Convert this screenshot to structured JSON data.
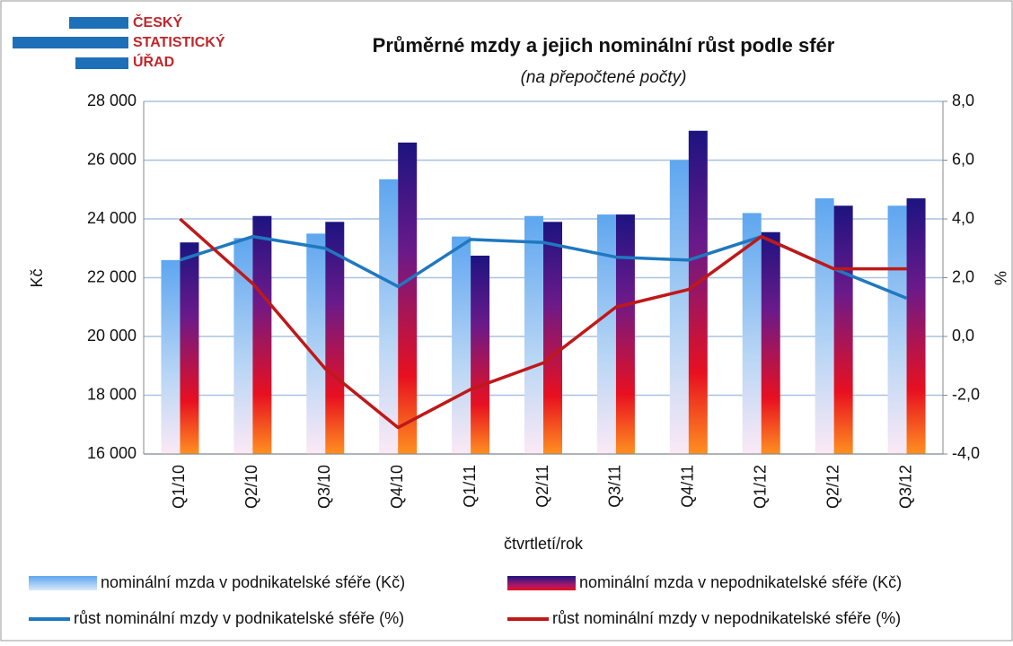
{
  "chart_data": {
    "type": "bar",
    "logo_text": [
      "ČESKÝ",
      "STATISTICKÝ",
      "ÚŘAD"
    ],
    "title": "Průměrné mzdy a jejich nominální růst podle sfér",
    "subtitle": "(na přepočtené počty)",
    "xlabel": "čtvrtletí/rok",
    "ylabel": "Kč",
    "y2label": "%",
    "categories": [
      "Q1/10",
      "Q2/10",
      "Q3/10",
      "Q4/10",
      "Q1/11",
      "Q2/11",
      "Q3/11",
      "Q4/11",
      "Q1/12",
      "Q2/12",
      "Q3/12"
    ],
    "series": [
      {
        "name": "nominální mzda v podnikatelské sféře (Kč)",
        "type": "bar",
        "color": "#5ea6f0",
        "values": [
          22600,
          23350,
          23500,
          25350,
          23400,
          24100,
          24150,
          26000,
          24200,
          24700,
          24450
        ]
      },
      {
        "name": "nominální mzda v nepodnikatelské sféře (Kč)",
        "type": "bar",
        "color": "#1c1480",
        "values": [
          23200,
          24100,
          23900,
          26600,
          22750,
          23900,
          24150,
          27000,
          23550,
          24450,
          24700
        ]
      },
      {
        "name": "růst nominální mzdy v podnikatelské sféře (%)",
        "type": "line",
        "axis": "y2",
        "color": "#1f78c0",
        "values": [
          2.6,
          3.4,
          3.0,
          1.7,
          3.3,
          3.2,
          2.7,
          2.6,
          3.4,
          2.3,
          1.3
        ]
      },
      {
        "name": "růst nominální mzdy v nepodnikatelské sféře (%)",
        "type": "line",
        "axis": "y2",
        "color": "#c01818",
        "values": [
          4.0,
          1.8,
          -1.1,
          -3.1,
          -1.8,
          -0.9,
          1.0,
          1.6,
          3.4,
          2.3,
          2.3
        ]
      }
    ],
    "ylim": [
      16000,
      28000
    ],
    "yticks": [
      {
        "value": 16000,
        "label": "16 000"
      },
      {
        "value": 18000,
        "label": "18 000"
      },
      {
        "value": 20000,
        "label": "20 000"
      },
      {
        "value": 22000,
        "label": "22 000"
      },
      {
        "value": 24000,
        "label": "24 000"
      },
      {
        "value": 26000,
        "label": "26 000"
      },
      {
        "value": 28000,
        "label": "28 000"
      }
    ],
    "y2lim": [
      -4,
      8
    ],
    "y2ticks": [
      {
        "value": -4,
        "label": "-4,0"
      },
      {
        "value": -2,
        "label": "-2,0"
      },
      {
        "value": 0,
        "label": "0,0"
      },
      {
        "value": 2,
        "label": "2,0"
      },
      {
        "value": 4,
        "label": "4,0"
      },
      {
        "value": 6,
        "label": "6,0"
      },
      {
        "value": 8,
        "label": "8,0"
      }
    ],
    "grid": true,
    "legend": "bottom"
  }
}
